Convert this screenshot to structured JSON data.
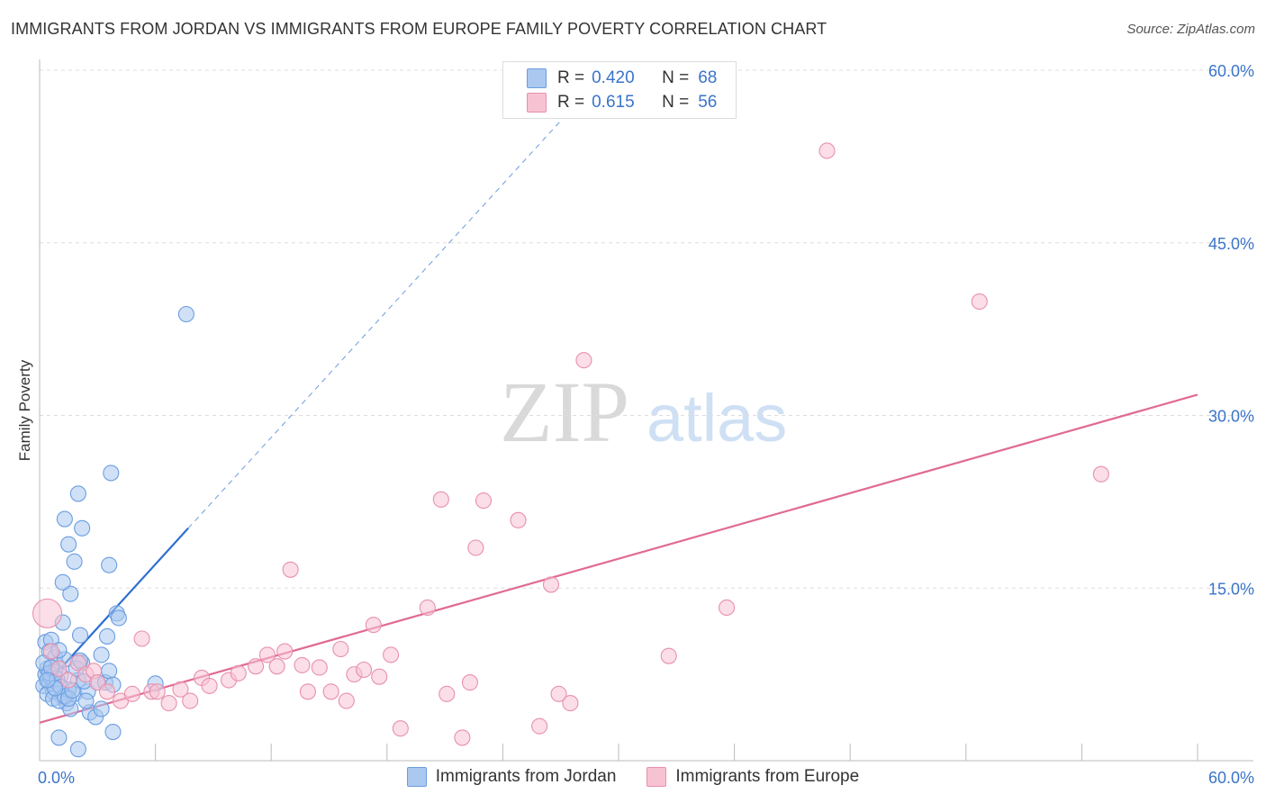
{
  "title": "IMMIGRANTS FROM JORDAN VS IMMIGRANTS FROM EUROPE FAMILY POVERTY CORRELATION CHART",
  "source": "Source: ZipAtlas.com",
  "watermark": {
    "zip": "ZIP",
    "atlas": "atlas"
  },
  "legend_top": [
    {
      "r_label": "R =",
      "r_value": "0.420",
      "n_label": "N =",
      "n_value": "68"
    },
    {
      "r_label": "R =",
      "r_value": "0.615",
      "n_label": "N =",
      "n_value": "56"
    }
  ],
  "legend_bottom": [
    {
      "label": "Immigrants from Jordan"
    },
    {
      "label": "Immigrants from Europe"
    }
  ],
  "colors": {
    "blue_fill": "#aac8f0",
    "blue_stroke": "#6a9de0",
    "blue_line": "#2e70d0",
    "pink_fill": "#f7c3d3",
    "pink_stroke": "#e890ac",
    "pink_line": "#e06a94",
    "axis_text": "#3a74c9",
    "grid": "#dddddd"
  },
  "chart_data": {
    "type": "scatter",
    "title": "IMMIGRANTS FROM JORDAN VS IMMIGRANTS FROM EUROPE FAMILY POVERTY CORRELATION CHART",
    "xlabel": "",
    "ylabel": "Family Poverty",
    "xlim": [
      0,
      60
    ],
    "ylim": [
      0,
      60
    ],
    "x_tick_labels": [
      "0.0%",
      "60.0%"
    ],
    "y_ticks": [
      15,
      30,
      45,
      60
    ],
    "y_tick_labels": [
      "15.0%",
      "30.0%",
      "45.0%",
      "60.0%"
    ],
    "grid": true,
    "series": [
      {
        "name": "Immigrants from Jordan",
        "R": 0.42,
        "N": 68,
        "trend": {
          "x0": 0.1,
          "y0": 6.2,
          "x1": 7.7,
          "y1": 20.2,
          "dash_to_x": 27.0,
          "dash_to_y": 55.6
        },
        "points": [
          [
            0.2,
            6.5
          ],
          [
            0.3,
            7.5
          ],
          [
            0.4,
            8.0
          ],
          [
            0.5,
            6.8
          ],
          [
            0.6,
            7.2
          ],
          [
            0.7,
            6.0
          ],
          [
            0.8,
            7.8
          ],
          [
            0.9,
            8.3
          ],
          [
            1.0,
            6.6
          ],
          [
            1.1,
            7.4
          ],
          [
            0.3,
            10.3
          ],
          [
            0.6,
            10.5
          ],
          [
            0.5,
            9.5
          ],
          [
            0.8,
            9.0
          ],
          [
            1.2,
            5.5
          ],
          [
            1.4,
            5.0
          ],
          [
            1.6,
            4.5
          ],
          [
            1.8,
            5.8
          ],
          [
            2.0,
            7.0
          ],
          [
            2.2,
            8.5
          ],
          [
            1.3,
            8.8
          ],
          [
            1.5,
            6.2
          ],
          [
            0.4,
            5.8
          ],
          [
            0.7,
            5.4
          ],
          [
            1.0,
            5.2
          ],
          [
            2.5,
            6.0
          ],
          [
            2.6,
            4.2
          ],
          [
            2.9,
            3.8
          ],
          [
            3.2,
            4.5
          ],
          [
            3.0,
            6.8
          ],
          [
            1.2,
            12.0
          ],
          [
            1.6,
            14.5
          ],
          [
            1.2,
            15.5
          ],
          [
            1.8,
            17.3
          ],
          [
            1.5,
            18.8
          ],
          [
            2.2,
            20.2
          ],
          [
            1.3,
            21.0
          ],
          [
            2.0,
            23.2
          ],
          [
            3.7,
            25.0
          ],
          [
            4.0,
            12.8
          ],
          [
            4.1,
            12.4
          ],
          [
            3.6,
            17.0
          ],
          [
            3.2,
            9.2
          ],
          [
            3.5,
            10.8
          ],
          [
            2.1,
            10.9
          ],
          [
            3.4,
            6.8
          ],
          [
            3.6,
            7.8
          ],
          [
            3.8,
            6.6
          ],
          [
            6.0,
            6.7
          ],
          [
            7.6,
            38.8
          ],
          [
            1.0,
            2.0
          ],
          [
            2.0,
            1.0
          ],
          [
            3.8,
            2.5
          ],
          [
            0.2,
            8.5
          ],
          [
            0.5,
            7.6
          ],
          [
            0.9,
            7.1
          ],
          [
            1.1,
            6.4
          ],
          [
            1.3,
            5.6
          ],
          [
            1.5,
            5.4
          ],
          [
            1.7,
            6.1
          ],
          [
            1.9,
            8.0
          ],
          [
            2.1,
            8.7
          ],
          [
            2.3,
            6.9
          ],
          [
            0.6,
            8.1
          ],
          [
            0.8,
            6.3
          ],
          [
            1.0,
            9.6
          ],
          [
            0.4,
            7.0
          ],
          [
            2.4,
            5.2
          ]
        ]
      },
      {
        "name": "Immigrants from Europe",
        "R": 0.615,
        "N": 56,
        "trend": {
          "x0": 0,
          "y0": 3.3,
          "x1": 60,
          "y1": 31.8
        },
        "points": [
          [
            0.4,
            12.8
          ],
          [
            0.6,
            9.5
          ],
          [
            1.0,
            8.0
          ],
          [
            1.5,
            7.0
          ],
          [
            2.0,
            8.5
          ],
          [
            2.4,
            7.5
          ],
          [
            2.8,
            7.8
          ],
          [
            3.0,
            6.8
          ],
          [
            3.5,
            6.0
          ],
          [
            4.2,
            5.2
          ],
          [
            4.8,
            5.8
          ],
          [
            5.3,
            10.6
          ],
          [
            5.8,
            6.0
          ],
          [
            6.1,
            6.0
          ],
          [
            6.7,
            5.0
          ],
          [
            7.3,
            6.2
          ],
          [
            7.8,
            5.2
          ],
          [
            8.4,
            7.2
          ],
          [
            8.8,
            6.5
          ],
          [
            9.8,
            7.0
          ],
          [
            10.3,
            7.6
          ],
          [
            11.2,
            8.2
          ],
          [
            11.8,
            9.2
          ],
          [
            12.3,
            8.2
          ],
          [
            12.7,
            9.5
          ],
          [
            13.0,
            16.6
          ],
          [
            13.6,
            8.3
          ],
          [
            13.9,
            6.0
          ],
          [
            14.5,
            8.1
          ],
          [
            15.1,
            6.0
          ],
          [
            15.6,
            9.7
          ],
          [
            15.9,
            5.2
          ],
          [
            16.3,
            7.5
          ],
          [
            16.8,
            7.9
          ],
          [
            17.3,
            11.8
          ],
          [
            17.6,
            7.3
          ],
          [
            18.2,
            9.2
          ],
          [
            18.7,
            2.8
          ],
          [
            20.1,
            13.3
          ],
          [
            20.8,
            22.7
          ],
          [
            21.1,
            5.8
          ],
          [
            21.9,
            2.0
          ],
          [
            22.3,
            6.8
          ],
          [
            22.6,
            18.5
          ],
          [
            23.0,
            22.6
          ],
          [
            24.8,
            20.9
          ],
          [
            25.9,
            3.0
          ],
          [
            26.5,
            15.3
          ],
          [
            26.9,
            5.8
          ],
          [
            27.5,
            5.0
          ],
          [
            28.2,
            34.8
          ],
          [
            32.6,
            9.1
          ],
          [
            35.6,
            13.3
          ],
          [
            40.8,
            53.0
          ],
          [
            48.7,
            39.9
          ],
          [
            55.0,
            24.9
          ]
        ]
      }
    ]
  }
}
